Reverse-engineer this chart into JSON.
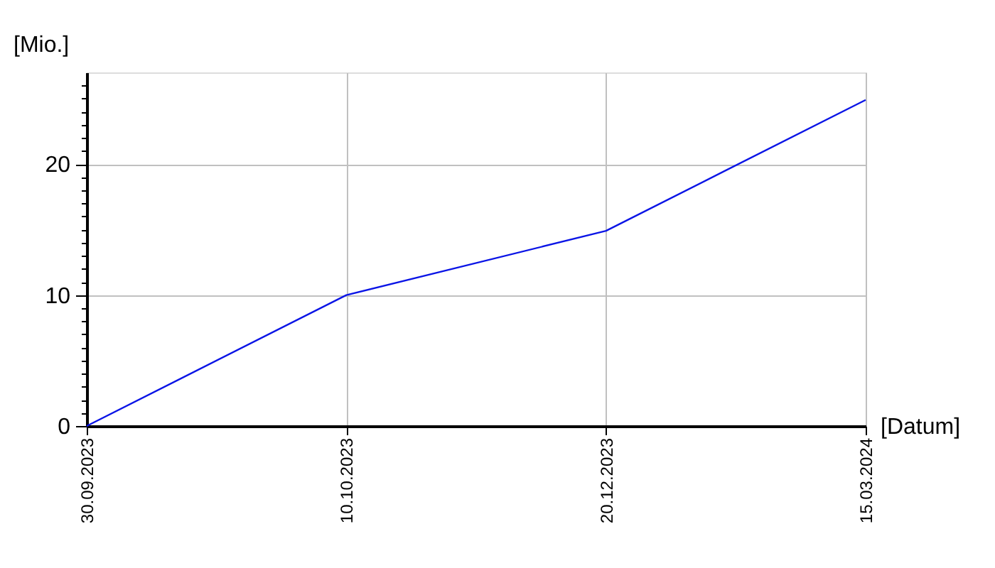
{
  "chart_data": {
    "type": "line",
    "categories": [
      "30.09.2023",
      "10.10.2023",
      "20.12.2023",
      "15.03.2024"
    ],
    "series": [
      {
        "color": "#0a14e6",
        "values": [
          0,
          10,
          14.9,
          24.9
        ]
      }
    ],
    "xlabel": "[Datum]",
    "ylabel": "[Mio.]",
    "ylim": [
      0,
      27
    ],
    "yticks": [
      0,
      {
        "value": 1,
        "label": null
      },
      {
        "value": 2,
        "label": null
      },
      {
        "value": 3,
        "label": null
      },
      {
        "value": 4,
        "label": null
      },
      {
        "value": 5,
        "label": null
      },
      {
        "value": 6,
        "label": null
      },
      {
        "value": 7,
        "label": null
      },
      {
        "value": 8,
        "label": null
      },
      {
        "value": 9,
        "label": null
      },
      10,
      {
        "value": 11,
        "label": null
      },
      {
        "value": 12,
        "label": null
      },
      {
        "value": 13,
        "label": null
      },
      {
        "value": 14,
        "label": null
      },
      {
        "value": 15,
        "label": null
      },
      {
        "value": 16,
        "label": null
      },
      {
        "value": 17,
        "label": null
      },
      {
        "value": 18,
        "label": null
      },
      {
        "value": 19,
        "label": null
      },
      20,
      {
        "value": 21,
        "label": null
      },
      {
        "value": 22,
        "label": null
      },
      {
        "value": 23,
        "label": null
      },
      {
        "value": 24,
        "label": null
      },
      {
        "value": 25,
        "label": null
      },
      {
        "value": 26,
        "label": null
      }
    ],
    "grid": true,
    "marker": "none",
    "line_style": "solid"
  }
}
